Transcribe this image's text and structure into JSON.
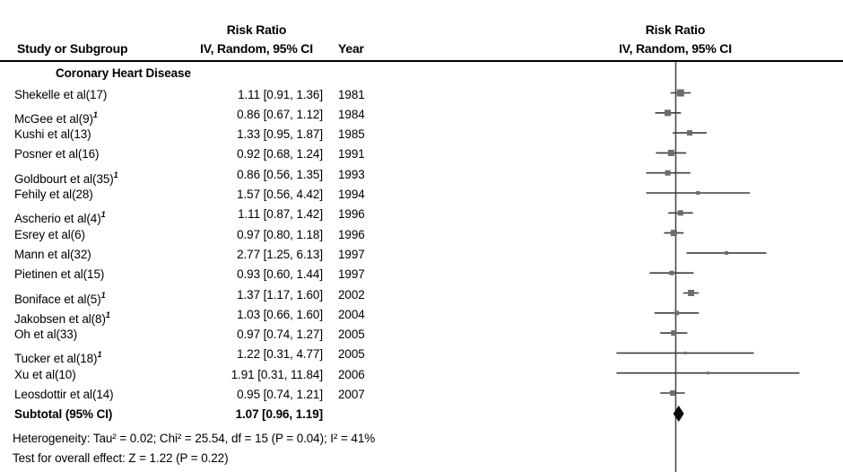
{
  "header": {
    "study_col": "Study or Subgroup",
    "effect_col_line1": "Risk Ratio",
    "effect_col_line2": "IV, Random, 95% CI",
    "year_col": "Year",
    "plot_col_line1": "Risk Ratio",
    "plot_col_line2": "IV, Random, 95% CI"
  },
  "subgroup_title": "Coronary Heart Disease",
  "footer": {
    "heterogeneity": "Heterogeneity: Tau² = 0.02; Chi² = 25.54, df = 15 (P = 0.04); I² = 41%",
    "overall_effect": "Test for overall effect: Z = 1.22 (P = 0.22)"
  },
  "colors": {
    "text": "#000000",
    "rule": "#000000",
    "axis_line": "#4a4b4d",
    "ci_line": "#3d3e40",
    "marker": "#6b6c6e",
    "diamond": "#0a0a0a"
  },
  "chart_data": {
    "type": "scatter",
    "variant": "forest-plot-meta-analysis",
    "title": "Risk Ratio",
    "method": "IV, Random, 95% CI",
    "x_scale": "log",
    "null_line_value": 1,
    "x_visible_range_approx": [
      0.007,
      28
    ],
    "legend_position": "none",
    "grid": false,
    "studies": [
      {
        "name": "Shekelle et al(17)",
        "sup": "",
        "rr": 1.11,
        "ci_low": 0.91,
        "ci_high": 1.36,
        "estimate_label": "1.11 [0.91, 1.36]",
        "year": "1981",
        "marker_px": 8
      },
      {
        "name": "McGee et al(9)",
        "sup": "1",
        "rr": 0.86,
        "ci_low": 0.67,
        "ci_high": 1.12,
        "estimate_label": "0.86 [0.67, 1.12]",
        "year": "1984",
        "marker_px": 7
      },
      {
        "name": "Kushi et al(13)",
        "sup": "",
        "rr": 1.33,
        "ci_low": 0.95,
        "ci_high": 1.87,
        "estimate_label": "1.33 [0.95, 1.87]",
        "year": "1985",
        "marker_px": 6
      },
      {
        "name": "Posner et al(16)",
        "sup": "",
        "rr": 0.92,
        "ci_low": 0.68,
        "ci_high": 1.24,
        "estimate_label": "0.92 [0.68, 1.24]",
        "year": "1991",
        "marker_px": 7
      },
      {
        "name": "Goldbourt et al(35)",
        "sup": "1",
        "rr": 0.86,
        "ci_low": 0.56,
        "ci_high": 1.35,
        "estimate_label": "0.86 [0.56, 1.35]",
        "year": "1993",
        "marker_px": 6
      },
      {
        "name": "Fehily et al(28)",
        "sup": "",
        "rr": 1.57,
        "ci_low": 0.56,
        "ci_high": 4.42,
        "estimate_label": "1.57 [0.56, 4.42]",
        "year": "1994",
        "marker_px": 4
      },
      {
        "name": "Ascherio et al(4)",
        "sup": "1",
        "rr": 1.11,
        "ci_low": 0.87,
        "ci_high": 1.42,
        "estimate_label": "1.11 [0.87, 1.42]",
        "year": "1996",
        "marker_px": 6
      },
      {
        "name": "Esrey et al(6)",
        "sup": "",
        "rr": 0.97,
        "ci_low": 0.8,
        "ci_high": 1.18,
        "estimate_label": "0.97 [0.80, 1.18]",
        "year": "1996",
        "marker_px": 7
      },
      {
        "name": "Mann et al(32)",
        "sup": "",
        "rr": 2.77,
        "ci_low": 1.25,
        "ci_high": 6.13,
        "estimate_label": "2.77 [1.25, 6.13]",
        "year": "1997",
        "marker_px": 4
      },
      {
        "name": "Pietinen et al(15)",
        "sup": "",
        "rr": 0.93,
        "ci_low": 0.6,
        "ci_high": 1.44,
        "estimate_label": "0.93 [0.60, 1.44]",
        "year": "1997",
        "marker_px": 5
      },
      {
        "name": "Boniface et al(5)",
        "sup": "1",
        "rr": 1.37,
        "ci_low": 1.17,
        "ci_high": 1.6,
        "estimate_label": "1.37 [1.17, 1.60]",
        "year": "2002",
        "marker_px": 7
      },
      {
        "name": "Jakobsen et al(8)",
        "sup": "1",
        "rr": 1.03,
        "ci_low": 0.66,
        "ci_high": 1.6,
        "estimate_label": "1.03 [0.66, 1.60]",
        "year": "2004",
        "marker_px": 5
      },
      {
        "name": "Oh et al(33)",
        "sup": "",
        "rr": 0.97,
        "ci_low": 0.74,
        "ci_high": 1.27,
        "estimate_label": "0.97 [0.74, 1.27]",
        "year": "2005",
        "marker_px": 6
      },
      {
        "name": "Tucker et al(18)",
        "sup": "1",
        "rr": 1.22,
        "ci_low": 0.31,
        "ci_high": 4.77,
        "estimate_label": "1.22 [0.31, 4.77]",
        "year": "2005",
        "marker_px": 3
      },
      {
        "name": "Xu et al(10)",
        "sup": "",
        "rr": 1.91,
        "ci_low": 0.31,
        "ci_high": 11.84,
        "estimate_label": "1.91 [0.31, 11.84]",
        "year": "2006",
        "marker_px": 3
      },
      {
        "name": "Leosdottir et al(14)",
        "sup": "",
        "rr": 0.95,
        "ci_low": 0.74,
        "ci_high": 1.21,
        "estimate_label": "0.95 [0.74, 1.21]",
        "year": "2007",
        "marker_px": 6
      }
    ],
    "subtotal": {
      "label": "Subtotal (95% CI)",
      "rr": 1.07,
      "ci_low": 0.96,
      "ci_high": 1.19,
      "estimate_label": "1.07 [0.96, 1.19]"
    },
    "heterogeneity": {
      "tau2": 0.02,
      "chi2": 25.54,
      "df": 15,
      "p": 0.04,
      "i2_pct": 41
    },
    "overall_effect_test": {
      "z": 1.22,
      "p": 0.22
    }
  }
}
